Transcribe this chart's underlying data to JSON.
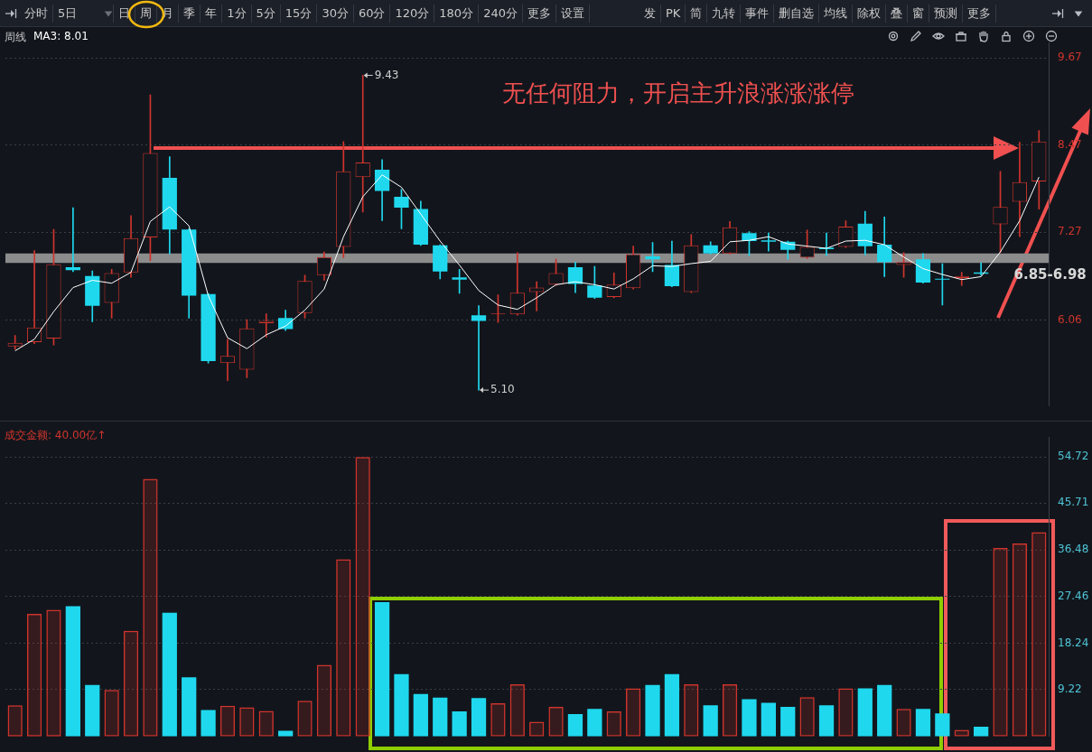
{
  "chart_data": [
    {
      "type": "candlestick",
      "title": "周线",
      "legend": "top left",
      "grid": "y",
      "tick_labels": "y",
      "categories": [
        null,
        null,
        null,
        null,
        null,
        null,
        null,
        null,
        null,
        null,
        null,
        null,
        null,
        null,
        null,
        null,
        null,
        null,
        null,
        null,
        null,
        null,
        null,
        null,
        null,
        null,
        null,
        null,
        null,
        null,
        null,
        null,
        null,
        null,
        null,
        null,
        null,
        null,
        null,
        null,
        null,
        null,
        null,
        null,
        null,
        null,
        null,
        null,
        null,
        null,
        null,
        null,
        null,
        null
      ],
      "ohlc": [
        [
          5.7,
          5.85,
          5.66,
          5.75
        ],
        [
          5.76,
          7.02,
          5.74,
          5.96
        ],
        [
          5.81,
          7.31,
          5.72,
          6.83
        ],
        [
          6.79,
          7.61,
          6.73,
          6.75
        ],
        [
          6.67,
          6.74,
          6.04,
          6.26
        ],
        [
          6.3,
          6.76,
          6.09,
          6.71
        ],
        [
          6.72,
          7.5,
          6.65,
          7.19
        ],
        [
          7.2,
          9.16,
          6.88,
          8.36
        ],
        [
          8.02,
          8.31,
          6.97,
          7.31
        ],
        [
          7.31,
          7.32,
          6.09,
          6.4
        ],
        [
          6.42,
          6.43,
          5.47,
          5.5
        ],
        [
          5.47,
          5.8,
          5.23,
          5.57
        ],
        [
          5.38,
          6.07,
          5.27,
          5.95
        ],
        [
          6.02,
          6.15,
          5.83,
          6.05
        ],
        [
          6.09,
          6.2,
          5.92,
          5.94
        ],
        [
          6.16,
          6.68,
          6.09,
          6.6
        ],
        [
          6.68,
          7.0,
          6.61,
          6.93
        ],
        [
          7.07,
          8.52,
          6.92,
          8.11
        ],
        [
          8.03,
          9.43,
          7.55,
          8.23
        ],
        [
          8.13,
          8.27,
          7.43,
          7.84
        ],
        [
          7.76,
          7.86,
          7.32,
          7.61
        ],
        [
          7.59,
          7.7,
          7.09,
          7.1
        ],
        [
          7.09,
          7.1,
          6.63,
          6.73
        ],
        [
          6.65,
          6.76,
          6.43,
          6.62
        ],
        [
          6.13,
          6.26,
          5.1,
          6.05
        ],
        [
          6.14,
          6.41,
          6.03,
          6.15
        ],
        [
          6.14,
          6.99,
          6.13,
          6.44
        ],
        [
          6.45,
          6.59,
          6.19,
          6.51
        ],
        [
          6.55,
          6.9,
          6.54,
          6.71
        ],
        [
          6.79,
          6.86,
          6.44,
          6.56
        ],
        [
          6.54,
          6.8,
          6.36,
          6.37
        ],
        [
          6.38,
          6.71,
          6.37,
          6.55
        ],
        [
          6.5,
          7.08,
          6.49,
          6.97
        ],
        [
          6.94,
          7.13,
          6.73,
          6.9
        ],
        [
          6.82,
          7.15,
          6.52,
          6.53
        ],
        [
          6.45,
          7.24,
          6.44,
          7.09
        ],
        [
          7.09,
          7.14,
          6.97,
          6.98
        ],
        [
          6.98,
          7.42,
          6.97,
          7.34
        ],
        [
          7.26,
          7.28,
          6.95,
          7.15
        ],
        [
          7.16,
          7.26,
          7.01,
          7.14
        ],
        [
          7.14,
          7.15,
          6.9,
          7.03
        ],
        [
          6.92,
          7.3,
          6.91,
          7.07
        ],
        [
          7.06,
          7.26,
          6.95,
          7.04
        ],
        [
          7.07,
          7.43,
          7.06,
          7.35
        ],
        [
          7.39,
          7.56,
          6.96,
          7.08
        ],
        [
          7.1,
          7.48,
          6.66,
          6.86
        ],
        [
          6.82,
          6.99,
          6.65,
          6.86
        ],
        [
          6.9,
          6.98,
          6.57,
          6.58
        ],
        [
          6.63,
          6.84,
          6.27,
          6.62
        ],
        [
          6.64,
          6.72,
          6.54,
          6.67
        ],
        [
          6.72,
          6.85,
          6.68,
          6.7
        ],
        [
          7.38,
          8.11,
          6.99,
          7.62
        ],
        [
          7.69,
          8.51,
          7.21,
          7.96
        ],
        [
          7.97,
          8.67,
          7.59,
          8.52
        ]
      ],
      "colors": [
        "#d0342c",
        "#d0342c",
        "#d0342c",
        "#1fd8ee",
        "#1fd8ee",
        "#d0342c",
        "#d0342c",
        "#d0342c",
        "#1fd8ee",
        "#1fd8ee",
        "#1fd8ee",
        "#d0342c",
        "#d0342c",
        "#d0342c",
        "#1fd8ee",
        "#d0342c",
        "#d0342c",
        "#d0342c",
        "#d0342c",
        "#1fd8ee",
        "#1fd8ee",
        "#1fd8ee",
        "#1fd8ee",
        "#1fd8ee",
        "#1fd8ee",
        "#d0342c",
        "#d0342c",
        "#d0342c",
        "#d0342c",
        "#1fd8ee",
        "#1fd8ee",
        "#d0342c",
        "#d0342c",
        "#1fd8ee",
        "#1fd8ee",
        "#d0342c",
        "#1fd8ee",
        "#d0342c",
        "#1fd8ee",
        "#1fd8ee",
        "#1fd8ee",
        "#d0342c",
        "#1fd8ee",
        "#d0342c",
        "#1fd8ee",
        "#1fd8ee",
        "#d0342c",
        "#1fd8ee",
        "#1fd8ee",
        "#d0342c",
        "#1fd8ee",
        "#d0342c",
        "#d0342c",
        "#d0342c"
      ],
      "series": [
        {
          "type": "line",
          "name": "MA3: 8.01",
          "color": "#ffffff",
          "values": [
            5.64,
            5.8,
            6.18,
            6.51,
            6.61,
            6.57,
            6.72,
            7.42,
            7.62,
            7.36,
            6.4,
            5.82,
            5.67,
            5.86,
            5.98,
            6.2,
            6.49,
            7.21,
            7.76,
            8.06,
            7.89,
            7.52,
            7.15,
            6.82,
            6.47,
            6.27,
            6.21,
            6.37,
            6.55,
            6.59,
            6.55,
            6.49,
            6.63,
            6.81,
            6.8,
            6.84,
            6.87,
            7.14,
            7.16,
            7.21,
            7.11,
            7.08,
            7.05,
            7.15,
            7.16,
            7.1,
            6.93,
            6.77,
            6.69,
            6.62,
            6.66,
            7.0,
            7.43,
            8.03
          ]
        }
      ],
      "ylim": [
        4.88,
        9.88
      ],
      "yticks": [
        9.67,
        8.47,
        7.27,
        6.06
      ],
      "bands": [
        {
          "axis": "y",
          "from": 6.85,
          "to": 6.98,
          "label": "6.85-6.98",
          "color": "#8c8c8c"
        }
      ],
      "annotations": [
        "无任何阻力，开启主升浪涨涨涨停",
        "9.43",
        "5.10",
        "分时",
        "5日",
        "日",
        "周",
        "月",
        "季",
        "年",
        "1分",
        "5分",
        "15分",
        "30分",
        "60分",
        "120分",
        "180分",
        "240分",
        "更多",
        "设置",
        "发",
        "PK",
        "简",
        "九转",
        "事件",
        "删自选",
        "均线",
        "除权",
        "叠",
        "窗",
        "预测",
        "更多"
      ]
    },
    {
      "type": "bar",
      "title": "成交金额: 40.00亿↑",
      "grid": "y",
      "tick_labels": "y",
      "categories": [
        null,
        null,
        null,
        null,
        null,
        null,
        null,
        null,
        null,
        null,
        null,
        null,
        null,
        null,
        null,
        null,
        null,
        null,
        null,
        null,
        null,
        null,
        null,
        null,
        null,
        null,
        null,
        null,
        null,
        null,
        null,
        null,
        null,
        null,
        null,
        null,
        null,
        null,
        null,
        null,
        null,
        null,
        null,
        null,
        null,
        null,
        null,
        null,
        null,
        null,
        null,
        null,
        null,
        null
      ],
      "values": [
        6.1,
        24.0,
        24.8,
        25.5,
        10.1,
        9.1,
        20.7,
        50.4,
        24.2,
        11.6,
        5.2,
        6.0,
        5.7,
        5.0,
        1.1,
        7.0,
        14.0,
        34.7,
        54.7,
        26.3,
        12.2,
        8.3,
        7.6,
        4.9,
        7.5,
        6.5,
        10.2,
        2.9,
        5.8,
        4.4,
        5.4,
        4.9,
        9.4,
        10.1,
        12.2,
        10.2,
        6.1,
        10.2,
        7.3,
        6.6,
        5.8,
        7.7,
        6.1,
        9.4,
        9.4,
        10.1,
        5.4,
        5.4,
        4.5,
        1.3,
        1.9,
        36.9,
        37.8,
        40.0
      ],
      "colors": [
        "#d0342c",
        "#d0342c",
        "#d0342c",
        "#1fd8ee",
        "#1fd8ee",
        "#d0342c",
        "#d0342c",
        "#d0342c",
        "#1fd8ee",
        "#1fd8ee",
        "#1fd8ee",
        "#d0342c",
        "#d0342c",
        "#d0342c",
        "#1fd8ee",
        "#d0342c",
        "#d0342c",
        "#d0342c",
        "#d0342c",
        "#1fd8ee",
        "#1fd8ee",
        "#1fd8ee",
        "#1fd8ee",
        "#1fd8ee",
        "#1fd8ee",
        "#d0342c",
        "#d0342c",
        "#d0342c",
        "#d0342c",
        "#1fd8ee",
        "#1fd8ee",
        "#d0342c",
        "#d0342c",
        "#1fd8ee",
        "#1fd8ee",
        "#d0342c",
        "#1fd8ee",
        "#d0342c",
        "#1fd8ee",
        "#1fd8ee",
        "#1fd8ee",
        "#d0342c",
        "#1fd8ee",
        "#d0342c",
        "#1fd8ee",
        "#1fd8ee",
        "#d0342c",
        "#1fd8ee",
        "#1fd8ee",
        "#d0342c",
        "#1fd8ee",
        "#d0342c",
        "#d0342c",
        "#d0342c"
      ],
      "ylim": [
        0,
        58.6
      ],
      "yticks": [
        54.72,
        45.71,
        36.48,
        27.46,
        18.24,
        9.22
      ]
    }
  ]
}
